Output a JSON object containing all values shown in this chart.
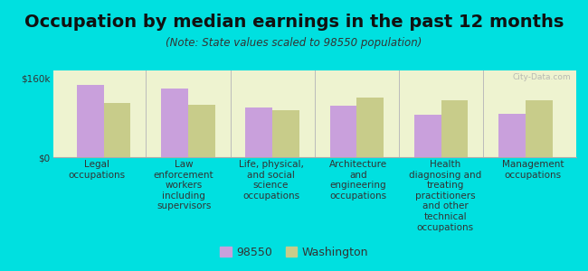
{
  "title": "Occupation by median earnings in the past 12 months",
  "subtitle": "(Note: State values scaled to 98550 population)",
  "categories": [
    "Legal\noccupations",
    "Law\nenforcement\nworkers\nincluding\nsupervisors",
    "Life, physical,\nand social\nscience\noccupations",
    "Architecture\nand\nengineering\noccupations",
    "Health\ndiagnosing and\ntreating\npractitioners\nand other\ntechnical\noccupations",
    "Management\noccupations"
  ],
  "values_98550": [
    145000,
    138000,
    100000,
    103000,
    85000,
    87000
  ],
  "values_washington": [
    110000,
    105000,
    95000,
    120000,
    115000,
    115000
  ],
  "color_98550": "#c9a0dc",
  "color_washington": "#c8cc8a",
  "background_chart": "#eef3d0",
  "background_fig": "#00e0e0",
  "ylim": [
    0,
    175000
  ],
  "yticks": [
    0,
    160000
  ],
  "ytick_labels": [
    "$0",
    "$160k"
  ],
  "legend_label_98550": "98550",
  "legend_label_washington": "Washington",
  "bar_width": 0.32,
  "title_fontsize": 14,
  "subtitle_fontsize": 8.5,
  "tick_fontsize": 7.5,
  "legend_fontsize": 9
}
